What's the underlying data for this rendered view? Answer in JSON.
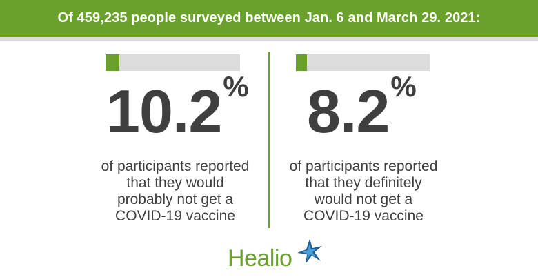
{
  "header": {
    "text": "Of 459,235 people surveyed between Jan. 6 and March 29. 2021:"
  },
  "stats": [
    {
      "value": "10.2",
      "unit": "%",
      "fill_fraction": 0.102,
      "description_lines": [
        "of participants reported",
        "that they would",
        "probably not get a",
        "COVID-19 vaccine"
      ]
    },
    {
      "value": "8.2",
      "unit": "%",
      "fill_fraction": 0.082,
      "description_lines": [
        "of participants reported",
        "that they definitely",
        "would not get a",
        "COVID-19 vaccine"
      ]
    }
  ],
  "logo": {
    "text": "Healio",
    "icon": "healio-star-icon"
  },
  "colors": {
    "accent": "#6aa02c",
    "track": "#dcdcdc",
    "text": "#3f3f3f"
  }
}
